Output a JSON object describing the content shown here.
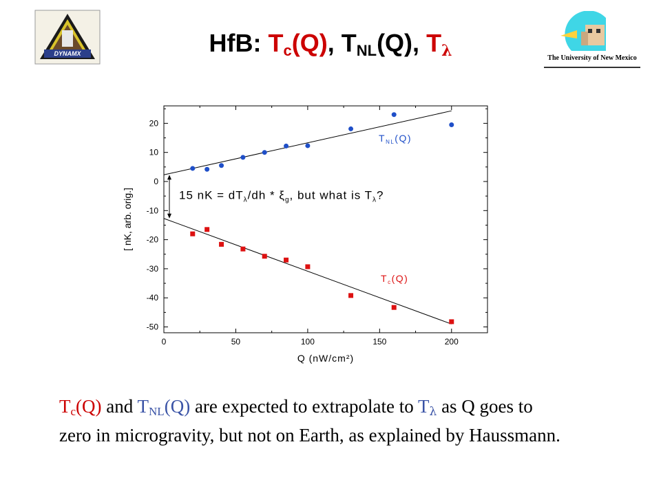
{
  "slide": {
    "title": {
      "prefix": "HfB: ",
      "tc": "T",
      "tc_sub": "c",
      "tc_arg": "(Q)",
      "sep1": ", ",
      "tnl": "T",
      "tnl_sub": "NL",
      "tnl_arg": "(Q)",
      "sep2": ", ",
      "tl": "T",
      "tl_sym": "λ"
    },
    "logo_left_text": "DYNAMX",
    "logo_right_text": "The University of New Mexico",
    "caption": {
      "tc": "T",
      "tc_sub": "c",
      "tc_arg": "(Q)",
      "and": " and ",
      "tnl": "T",
      "tnl_sub": "NL",
      "tnl_arg": "(Q)",
      "mid": " are expected to extrapolate to ",
      "tl": "T",
      "tl_sym": "λ",
      "line1_end": " as Q goes to",
      "line2": "zero in microgravity, but not on Earth, as explained by Haussmann."
    }
  },
  "colors": {
    "title_red": "#cc0000",
    "caption_blue": "#3a53a6",
    "series_tnl": "#1f4fc8",
    "series_tc": "#dd1111",
    "axis": "#000000"
  },
  "chart_data": {
    "type": "scatter",
    "xlabel": "Q (nW/cm²)",
    "ylabel": "[ nK, arb. orig.]",
    "xlim": [
      0,
      225
    ],
    "ylim": [
      -52,
      26
    ],
    "x_ticks": [
      0,
      50,
      100,
      150,
      200
    ],
    "y_ticks": [
      20,
      10,
      0,
      -10,
      -20,
      -30,
      -40,
      -50
    ],
    "grid": false,
    "series": [
      {
        "name": "TNL(Q)",
        "label": "T",
        "label_sub": "NL",
        "label_arg": "(Q)",
        "marker": "circle",
        "color": "#1f4fc8",
        "x": [
          20,
          30,
          40,
          55,
          70,
          85,
          100,
          130,
          160,
          200
        ],
        "y": [
          4.5,
          4.2,
          5.5,
          8.3,
          10,
          12.2,
          12.3,
          18.1,
          23,
          19.5
        ],
        "fit": {
          "x": [
            0,
            200
          ],
          "y": [
            2.3,
            24.3
          ]
        }
      },
      {
        "name": "Tc(Q)",
        "label": "T",
        "label_sub": "c",
        "label_arg": "(Q)",
        "marker": "square",
        "color": "#dd1111",
        "x": [
          20,
          30,
          40,
          55,
          70,
          85,
          100,
          130,
          160,
          200
        ],
        "y": [
          -18,
          -16.5,
          -21.6,
          -23.2,
          -25.7,
          -27,
          -29.3,
          -39.2,
          -43.3,
          -48.2
        ],
        "fit": {
          "x": [
            0,
            200
          ],
          "y": [
            -12.7,
            -49
          ]
        }
      }
    ],
    "annotation": {
      "text_main": "15 nK = dT",
      "text_sub1": "λ",
      "text_mid": "/dh * ξ",
      "text_sub2": "g",
      "text_end": ", but what is T",
      "text_sub3": "λ",
      "text_q": "?",
      "arrow_y": [
        2.3,
        -12.7
      ]
    }
  }
}
